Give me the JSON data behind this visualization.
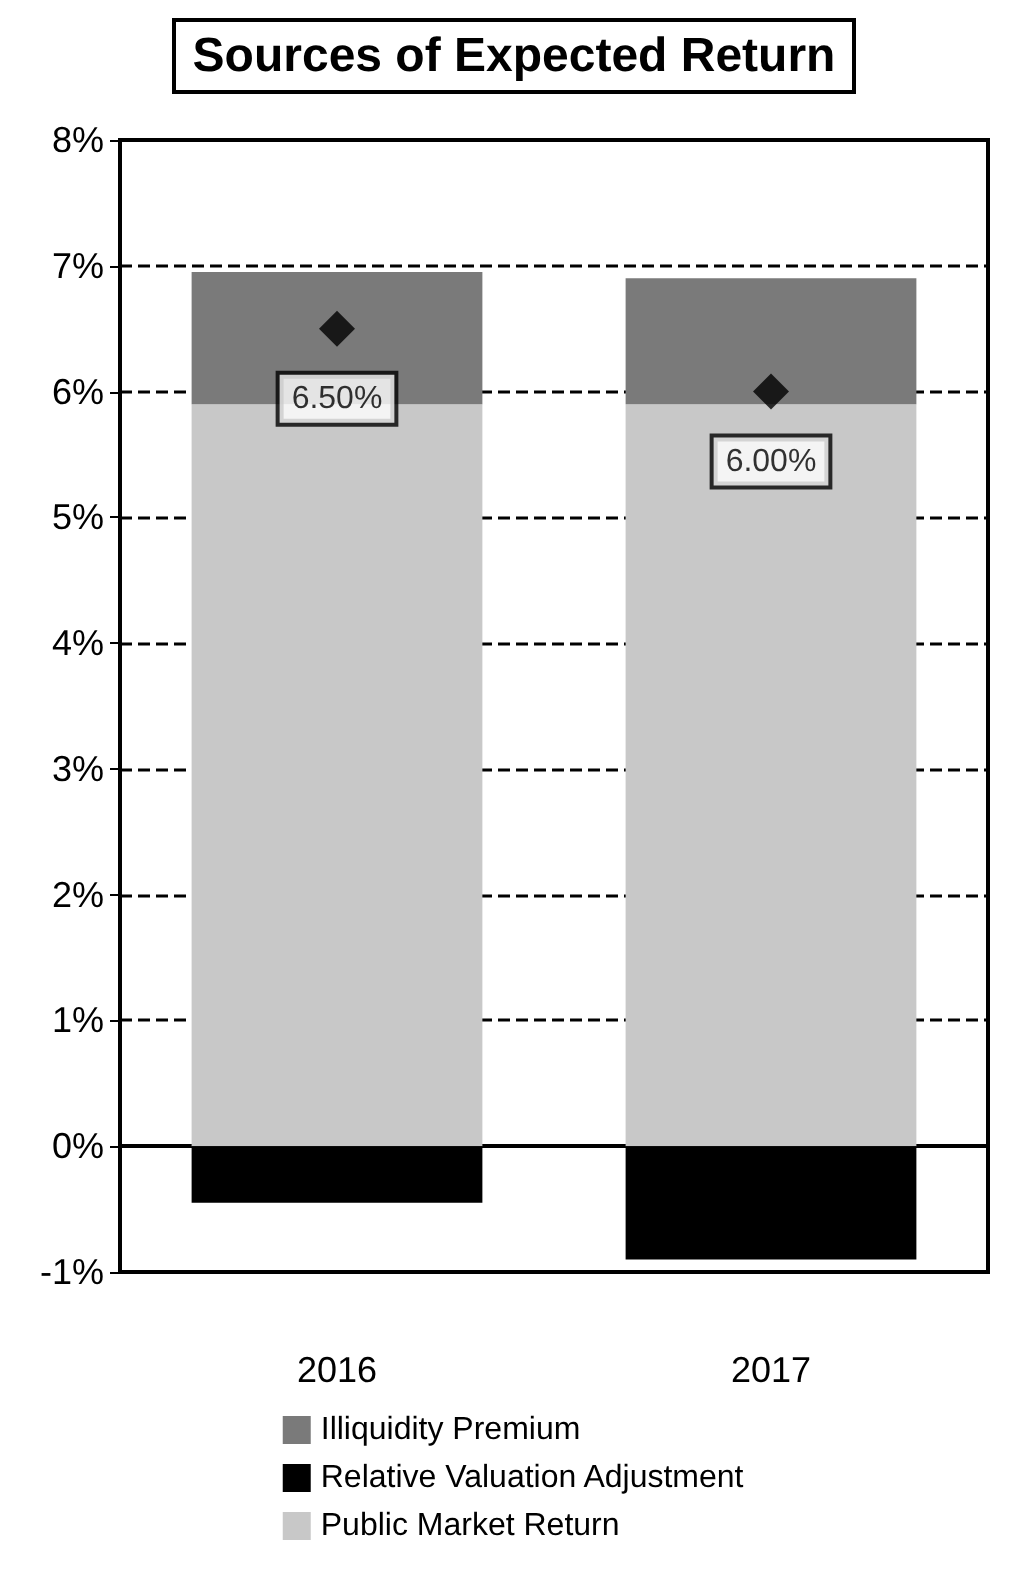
{
  "chart_data": {
    "type": "bar",
    "title": "Sources of Expected Return",
    "categories": [
      "2016",
      "2017"
    ],
    "stacked": true,
    "series": [
      {
        "name": "Public Market Return",
        "color": "#c8c8c8",
        "values": [
          5.9,
          5.9
        ]
      },
      {
        "name": "Relative Valuation Adjustment",
        "color": "#000000",
        "values": [
          -0.45,
          -0.9
        ]
      },
      {
        "name": "Illiquidity Premium",
        "color": "#7a7a7a",
        "values": [
          1.05,
          1.0
        ]
      },
      {
        "type": "scatter",
        "values": [
          6.5,
          6.0
        ],
        "color": "#000000",
        "value_labels": [
          "6.50%",
          "6.00%"
        ]
      }
    ],
    "marker": "diamond",
    "ylim": [
      -1,
      8
    ],
    "yticks": [
      {
        "value": -1,
        "label": "-1%"
      },
      {
        "value": 0,
        "label": "0%"
      },
      {
        "value": 1,
        "label": "1%"
      },
      {
        "value": 2,
        "label": "2%"
      },
      {
        "value": 3,
        "label": "3%"
      },
      {
        "value": 4,
        "label": "4%"
      },
      {
        "value": 5,
        "label": "5%"
      },
      {
        "value": 6,
        "label": "6%"
      },
      {
        "value": 7,
        "label": "7%"
      },
      {
        "value": 8,
        "label": "8%"
      }
    ],
    "grid": "y",
    "legend": "bottom"
  }
}
